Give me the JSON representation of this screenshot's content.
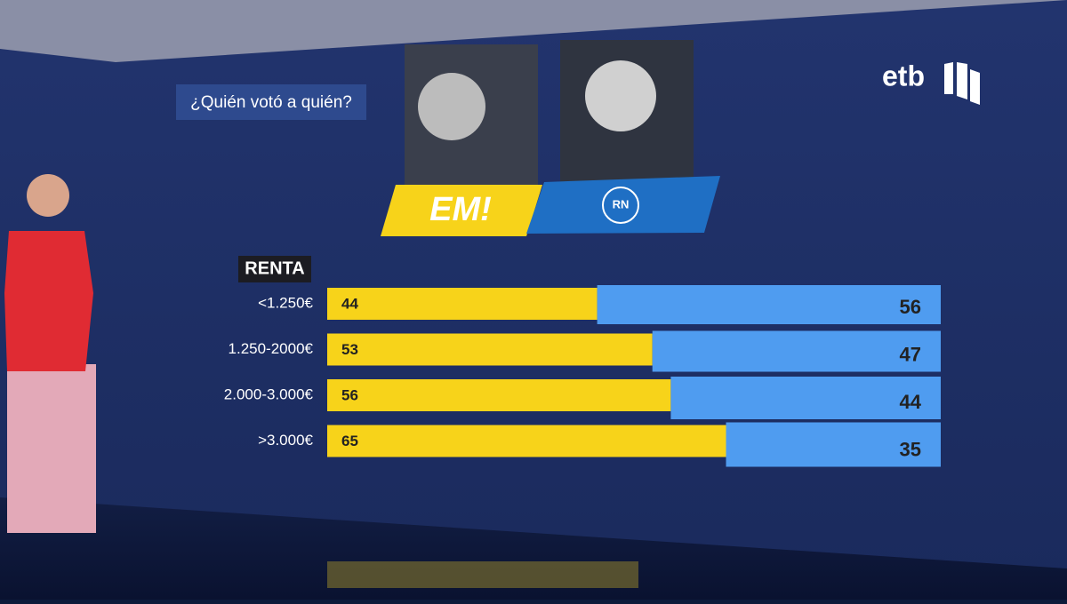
{
  "brand": "etb",
  "chart_data": {
    "type": "stacked-bar-horizontal",
    "title": "¿Quién votó a quién?",
    "category_label": "RENTA",
    "categories": [
      "<1.250€",
      "1.250-2000€",
      "2.000-3.000€",
      ">3.000€"
    ],
    "series": [
      {
        "name": "EM!",
        "color": "#f7d31a",
        "values": [
          44,
          53,
          56,
          65
        ]
      },
      {
        "name": "RN",
        "color": "#4f9cf0",
        "values": [
          56,
          47,
          44,
          35
        ]
      }
    ]
  }
}
